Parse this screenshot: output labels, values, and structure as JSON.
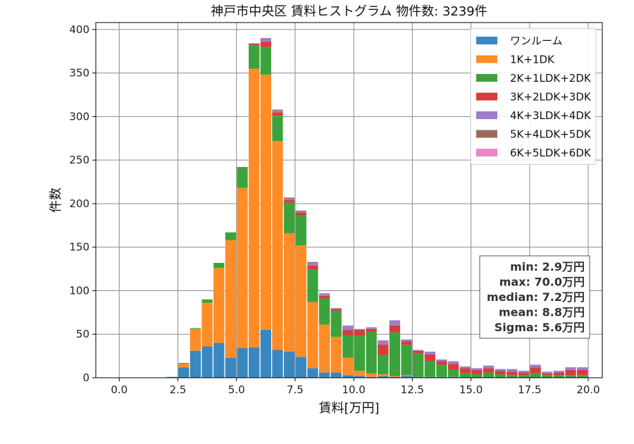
{
  "chart_data": {
    "type": "bar",
    "stacked": true,
    "title": "神戸市中央区 賃料ヒストグラム  物件数: 3239件",
    "xlabel": "賃料[万円]",
    "ylabel": "件数",
    "xlim": [
      -1.0,
      20.6
    ],
    "ylim": [
      0,
      408
    ],
    "xticks": [
      0.0,
      2.5,
      5.0,
      7.5,
      10.0,
      12.5,
      15.0,
      17.5,
      20.0
    ],
    "xtick_labels": [
      "0.0",
      "2.5",
      "5.0",
      "7.5",
      "10.0",
      "12.5",
      "15.0",
      "17.5",
      "20.0"
    ],
    "yticks": [
      0,
      50,
      100,
      150,
      200,
      250,
      300,
      350,
      400
    ],
    "ytick_labels": [
      "0",
      "50",
      "100",
      "150",
      "200",
      "250",
      "300",
      "350",
      "400"
    ],
    "grid": true,
    "bin_width": 0.5,
    "x": [
      2.0,
      2.5,
      3.0,
      3.5,
      4.0,
      4.5,
      5.0,
      5.5,
      6.0,
      6.5,
      7.0,
      7.5,
      8.0,
      8.5,
      9.0,
      9.5,
      10.0,
      10.5,
      11.0,
      11.5,
      12.0,
      12.5,
      13.0,
      13.5,
      14.0,
      14.5,
      15.0,
      15.5,
      16.0,
      16.5,
      17.0,
      17.5,
      18.0,
      18.5,
      19.0,
      19.5
    ],
    "series": [
      {
        "name": "ワンルーム",
        "color": "#3a87c0",
        "values": [
          1,
          12,
          31,
          36,
          40,
          23,
          34,
          35,
          55,
          32,
          30,
          24,
          11,
          6,
          6,
          3,
          2,
          1,
          2,
          1,
          2,
          1,
          1,
          1,
          1,
          0,
          0,
          0,
          0,
          0,
          0,
          0,
          0,
          0,
          0,
          0
        ]
      },
      {
        "name": "1K+1DK",
        "color": "#ff8c26",
        "values": [
          0,
          4,
          25,
          50,
          86,
          135,
          184,
          320,
          293,
          240,
          136,
          128,
          76,
          55,
          41,
          20,
          6,
          4,
          2,
          1,
          1,
          0,
          0,
          0,
          0,
          0,
          0,
          0,
          0,
          0,
          0,
          0,
          0,
          0,
          0,
          0
        ]
      },
      {
        "name": "2K+1LDK+2DK",
        "color": "#3ca33c",
        "values": [
          0,
          1,
          1,
          4,
          6,
          9,
          23,
          27,
          32,
          29,
          35,
          35,
          37,
          30,
          30,
          26,
          40,
          48,
          22,
          50,
          35,
          27,
          18,
          14,
          8,
          5,
          4,
          6,
          4,
          3,
          3,
          5,
          3,
          3,
          3,
          3
        ]
      },
      {
        "name": "3K+2LDK+3DK",
        "color": "#d63c3c",
        "values": [
          0,
          0,
          0,
          0,
          0,
          0,
          1,
          2,
          6,
          4,
          3,
          3,
          5,
          3,
          2,
          6,
          7,
          3,
          12,
          8,
          4,
          3,
          8,
          4,
          7,
          6,
          5,
          5,
          4,
          4,
          3,
          7,
          2,
          3,
          6,
          6
        ]
      },
      {
        "name": "4K+3LDK+4DK",
        "color": "#a07dc9",
        "values": [
          0,
          0,
          0,
          0,
          0,
          0,
          0,
          0,
          3,
          2,
          2,
          1,
          3,
          3,
          1,
          5,
          1,
          2,
          5,
          6,
          2,
          1,
          3,
          2,
          3,
          2,
          2,
          3,
          2,
          3,
          2,
          3,
          2,
          2,
          3,
          3
        ]
      },
      {
        "name": "5K+4LDK+5DK",
        "color": "#9a6b5c",
        "values": [
          0,
          0,
          0,
          0,
          0,
          0,
          0,
          0,
          1,
          1,
          1,
          1,
          1,
          0,
          0,
          0,
          0,
          0,
          0,
          0,
          0,
          0,
          0,
          0,
          0,
          0,
          0,
          0,
          0,
          0,
          0,
          0,
          0,
          0,
          0,
          0
        ]
      },
      {
        "name": "6K+5LDK+6DK",
        "color": "#e888c8",
        "values": [
          0,
          0,
          0,
          0,
          0,
          0,
          0,
          0,
          0,
          0,
          0,
          0,
          0,
          0,
          0,
          0,
          0,
          0,
          0,
          0,
          0,
          0,
          0,
          0,
          0,
          0,
          0,
          0,
          0,
          0,
          0,
          0,
          0,
          0,
          0,
          0
        ]
      }
    ],
    "legend_position": "top-right",
    "stats": [
      "min: 2.9万円",
      "max: 70.0万円",
      "median: 7.2万円",
      "mean: 8.8万円",
      "Sigma: 5.6万円"
    ]
  }
}
